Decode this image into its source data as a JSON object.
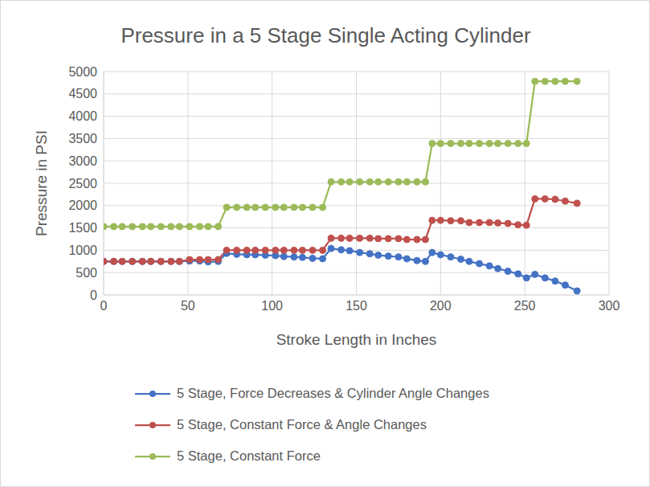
{
  "chart_data": {
    "type": "line",
    "title": "Pressure in a 5 Stage Single Acting Cylinder",
    "x_label": "Stroke Length in Inches",
    "y_label": "Pressure in PSI",
    "x": [
      0,
      6,
      11,
      17,
      23,
      28,
      34,
      40,
      45,
      51,
      57,
      62,
      68,
      73,
      79,
      85,
      90,
      96,
      102,
      107,
      113,
      118,
      124,
      130,
      135,
      141,
      146,
      152,
      158,
      163,
      169,
      175,
      180,
      186,
      191,
      195,
      200,
      206,
      212,
      217,
      223,
      229,
      234,
      240,
      246,
      251,
      256,
      262,
      268,
      274,
      281
    ],
    "series": [
      {
        "name": "5 Stage, Force Decreases & Cylinder Angle Changes",
        "color": "#4472c4",
        "marker": "circle",
        "values": [
          750,
          750,
          750,
          750,
          750,
          750,
          750,
          750,
          750,
          760,
          760,
          740,
          750,
          930,
          910,
          900,
          900,
          890,
          880,
          860,
          850,
          840,
          820,
          810,
          1040,
          1010,
          990,
          950,
          920,
          890,
          870,
          850,
          810,
          770,
          750,
          950,
          900,
          850,
          800,
          750,
          700,
          650,
          590,
          530,
          470,
          380,
          460,
          380,
          310,
          220,
          90
        ]
      },
      {
        "name": "5 Stage, Constant Force & Angle Changes",
        "color": "#c0504d",
        "marker": "circle",
        "values": [
          750,
          750,
          750,
          750,
          750,
          750,
          750,
          750,
          750,
          790,
          790,
          790,
          790,
          1000,
          1000,
          1000,
          1000,
          1000,
          1000,
          1000,
          1000,
          1000,
          1000,
          1000,
          1270,
          1270,
          1270,
          1270,
          1270,
          1260,
          1260,
          1260,
          1240,
          1240,
          1240,
          1670,
          1670,
          1660,
          1660,
          1620,
          1620,
          1620,
          1610,
          1600,
          1570,
          1560,
          2150,
          2150,
          2140,
          2100,
          2050
        ]
      },
      {
        "name": "5 Stage, Constant Force",
        "color": "#9bbb59",
        "marker": "circle",
        "values": [
          1530,
          1530,
          1530,
          1530,
          1530,
          1530,
          1530,
          1530,
          1530,
          1530,
          1530,
          1530,
          1530,
          1960,
          1960,
          1960,
          1960,
          1960,
          1960,
          1960,
          1960,
          1960,
          1960,
          1960,
          2530,
          2530,
          2530,
          2530,
          2530,
          2530,
          2530,
          2530,
          2530,
          2530,
          2530,
          3390,
          3390,
          3390,
          3390,
          3390,
          3390,
          3390,
          3390,
          3390,
          3390,
          3390,
          4780,
          4780,
          4780,
          4780,
          4780
        ]
      }
    ],
    "xlim": [
      0,
      300
    ],
    "xticks": [
      0,
      50,
      100,
      150,
      200,
      250,
      300
    ],
    "ylim": [
      0,
      5000
    ],
    "yticks": [
      0,
      500,
      1000,
      1500,
      2000,
      2500,
      3000,
      3500,
      4000,
      4500,
      5000
    ],
    "grid": true,
    "legend": "bottom"
  }
}
